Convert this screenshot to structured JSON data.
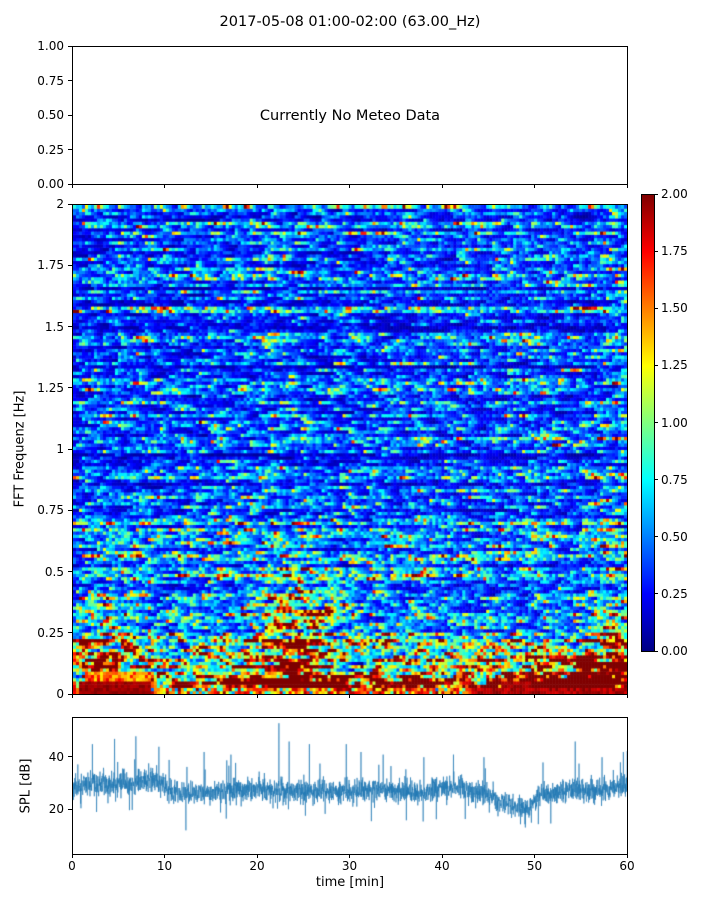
{
  "figure": {
    "title": "2017-05-08 01:00-02:00 (63.00_Hz)",
    "background": "#ffffff",
    "text_color": "#000000"
  },
  "chart_data": [
    {
      "type": "text",
      "name": "meteo-panel",
      "message": "Currently No Meteo Data",
      "xlim": [
        0,
        60
      ],
      "ylim": [
        0,
        1
      ],
      "yticks": [
        {
          "v": 0.0,
          "label": "0.00"
        },
        {
          "v": 0.25,
          "label": "0.25"
        },
        {
          "v": 0.5,
          "label": "0.50"
        },
        {
          "v": 0.75,
          "label": "0.75"
        },
        {
          "v": 1.0,
          "label": "1.00"
        }
      ],
      "xticks": [
        0,
        10,
        20,
        30,
        40,
        50,
        60
      ]
    },
    {
      "type": "heatmap",
      "name": "fft-spectrogram",
      "ylabel": "FFT Frequenz [Hz]",
      "xlim": [
        0,
        60
      ],
      "ylim": [
        0,
        2
      ],
      "clim": [
        0,
        2
      ],
      "colormap": "jet",
      "yticks": [
        {
          "v": 0,
          "label": "0"
        },
        {
          "v": 0.25,
          "label": "0.25"
        },
        {
          "v": 0.5,
          "label": "0.5"
        },
        {
          "v": 0.75,
          "label": "0.75"
        },
        {
          "v": 1,
          "label": "1"
        },
        {
          "v": 1.25,
          "label": "1.25"
        },
        {
          "v": 1.5,
          "label": "1.5"
        },
        {
          "v": 1.75,
          "label": "1.75"
        },
        {
          "v": 2,
          "label": "2"
        }
      ],
      "xticks": [
        0,
        10,
        20,
        30,
        40,
        50,
        60
      ],
      "colorbar": {
        "ticks": [
          {
            "v": 0.0,
            "label": "0.00"
          },
          {
            "v": 0.25,
            "label": "0.25"
          },
          {
            "v": 0.5,
            "label": "0.50"
          },
          {
            "v": 0.75,
            "label": "0.75"
          },
          {
            "v": 1.0,
            "label": "1.00"
          },
          {
            "v": 1.25,
            "label": "1.25"
          },
          {
            "v": 1.5,
            "label": "1.50"
          },
          {
            "v": 1.75,
            "label": "1.75"
          },
          {
            "v": 2.0,
            "label": "2.00"
          }
        ],
        "gradient_stops": [
          "#000083 0%",
          "#0000ff 12.5%",
          "#00ffff 37.5%",
          "#ffff00 62.5%",
          "#ff0000 87.5%",
          "#800000 100%"
        ]
      },
      "gen": {
        "seed": 7,
        "cols": 185,
        "rows": 150,
        "base": 0.225,
        "low_amp": 1.1,
        "low_scale": 0.085,
        "mid_amp": 0.16,
        "mid_scale": 0.55,
        "row_gain_sigma": 0.32,
        "ar": 0.55,
        "features": [
          {
            "t": 24,
            "tw": 4.5,
            "f": 0.33,
            "fw": 0.2,
            "amp": 1.3
          },
          {
            "t": 4,
            "tw": 3.5,
            "f": 0.22,
            "fw": 0.22,
            "amp": 0.9
          },
          {
            "t": 52,
            "tw": 7,
            "f": 0.05,
            "fw": 0.12,
            "amp": 1.0
          },
          {
            "t": 24,
            "tw": 5,
            "f": 0.05,
            "fw": 0.1,
            "amp": 0.8
          },
          {
            "t": 57.5,
            "tw": 2.5,
            "f": 0.15,
            "fw": 0.15,
            "amp": 1.0
          },
          {
            "t": 59.3,
            "tw": 2.2,
            "f": 1.0,
            "fw": 1.2,
            "amp": 0.35
          }
        ],
        "bottom_row": {
          "f_max": 0.026,
          "hot_prob": 0.78,
          "hot": [
            1.15,
            2.0
          ],
          "cool": [
            0.45,
            0.95
          ]
        },
        "hot_spots": [
          {
            "t": [
              1.2,
              8.3
            ],
            "f": 0.09,
            "v": [
              1.25,
              1.8
            ]
          },
          {
            "t": [
              0.8,
              8.3
            ],
            "f": 0.055,
            "v": [
              1.88,
              2.0
            ]
          },
          {
            "t": [
              46.5,
              49.5
            ],
            "f": 0.05,
            "v": [
              1.85,
              2.0
            ]
          },
          {
            "t": [
              43,
              60
            ],
            "f": 0.026,
            "v": [
              1.8,
              2.0
            ]
          }
        ]
      }
    },
    {
      "type": "line",
      "name": "spl-timeseries",
      "ylabel": "SPL [dB]",
      "xlabel": "time [min]",
      "line_color": "#1f77b4",
      "xlim": [
        0,
        60
      ],
      "ylim": [
        3,
        55
      ],
      "yticks": [
        {
          "v": 20,
          "label": "20"
        },
        {
          "v": 40,
          "label": "40"
        }
      ],
      "xticks": [
        {
          "v": 0,
          "label": "0"
        },
        {
          "v": 10,
          "label": "10"
        },
        {
          "v": 20,
          "label": "20"
        },
        {
          "v": 30,
          "label": "30"
        },
        {
          "v": 40,
          "label": "40"
        },
        {
          "v": 50,
          "label": "50"
        },
        {
          "v": 60,
          "label": "60"
        }
      ],
      "envelope": [
        [
          0,
          28.5
        ],
        [
          1.5,
          29
        ],
        [
          3,
          29.5
        ],
        [
          5,
          30
        ],
        [
          7,
          30.5
        ],
        [
          9,
          31.5
        ],
        [
          10,
          29
        ],
        [
          11,
          26.5
        ],
        [
          13,
          26
        ],
        [
          15,
          26.5
        ],
        [
          18,
          27.5
        ],
        [
          21,
          27.5
        ],
        [
          24,
          27
        ],
        [
          27,
          26.5
        ],
        [
          30,
          27
        ],
        [
          33,
          28
        ],
        [
          35,
          27.5
        ],
        [
          38,
          26.5
        ],
        [
          40,
          28
        ],
        [
          42,
          28.5
        ],
        [
          44,
          27
        ],
        [
          45.5,
          24.5
        ],
        [
          47,
          22.5
        ],
        [
          48.5,
          20.5
        ],
        [
          49.5,
          21
        ],
        [
          50.5,
          25.5
        ],
        [
          52,
          26.5
        ],
        [
          54,
          28
        ],
        [
          55.5,
          27.5
        ],
        [
          57,
          27
        ],
        [
          58.5,
          28
        ],
        [
          60,
          29
        ]
      ],
      "spikes": [
        [
          2.1,
          45
        ],
        [
          4.5,
          47
        ],
        [
          6.8,
          48
        ],
        [
          9.3,
          44
        ],
        [
          14.2,
          42
        ],
        [
          17.1,
          41
        ],
        [
          22.3,
          53
        ],
        [
          23.4,
          46
        ],
        [
          25.6,
          45
        ],
        [
          29.6,
          45
        ],
        [
          31.2,
          42
        ],
        [
          33.6,
          41
        ],
        [
          38.0,
          40
        ],
        [
          41.2,
          41
        ],
        [
          44.5,
          40
        ],
        [
          50.9,
          38
        ],
        [
          54.4,
          46
        ],
        [
          57.3,
          40
        ],
        [
          59.6,
          42
        ]
      ],
      "noise_sigma": 2.2,
      "n_points": 3200,
      "seed": 11
    }
  ]
}
